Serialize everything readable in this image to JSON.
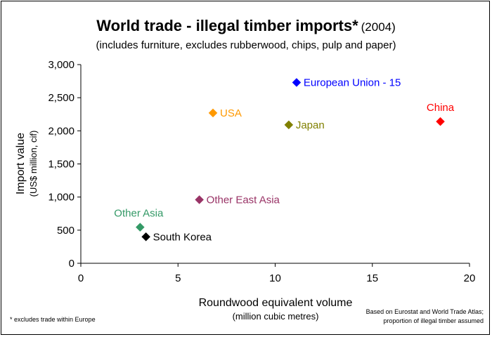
{
  "chart_data": {
    "type": "scatter",
    "title": "World trade - illegal timber imports*",
    "title_suffix": "(2004)",
    "subtitle": "(includes furniture, excludes rubberwood, chips, pulp and paper)",
    "xlabel": "Roundwood equivalent volume",
    "xlabel_sub": "(million cubic metres)",
    "ylabel": "Import value",
    "ylabel_sub": "(US$ million, cif)",
    "xlim": [
      0,
      20
    ],
    "ylim": [
      0,
      3000
    ],
    "x_ticks": [
      "0",
      "5",
      "10",
      "15",
      "20"
    ],
    "x_tick_values": [
      0,
      5,
      10,
      15,
      20
    ],
    "y_ticks": [
      "0",
      "500",
      "1,000",
      "1,500",
      "2,000",
      "2,500",
      "3,000"
    ],
    "y_tick_values": [
      0,
      500,
      1000,
      1500,
      2000,
      2500,
      3000
    ],
    "grid": false,
    "points": [
      {
        "name": "European Union - 15",
        "x": 11.1,
        "y": 2730,
        "color": "#0000ff",
        "label_pos": "right"
      },
      {
        "name": "USA",
        "x": 6.8,
        "y": 2270,
        "color": "#ff9900",
        "label_pos": "right"
      },
      {
        "name": "Japan",
        "x": 10.7,
        "y": 2090,
        "color": "#808000",
        "label_pos": "right"
      },
      {
        "name": "China",
        "x": 18.5,
        "y": 2140,
        "color": "#ff0000",
        "label_pos": "above"
      },
      {
        "name": "Other East Asia",
        "x": 6.1,
        "y": 960,
        "color": "#993366",
        "label_pos": "right"
      },
      {
        "name": "Other Asia",
        "x": 3.05,
        "y": 545,
        "color": "#339966",
        "label_pos": "above"
      },
      {
        "name": "South Korea",
        "x": 3.35,
        "y": 400,
        "color": "#000000",
        "label_pos": "right"
      }
    ]
  },
  "footnote": "* excludes trade within Europe",
  "source_line1": "Based on Eurostat and World Trade Atlas;",
  "source_line2": "proportion of illegal timber assumed"
}
